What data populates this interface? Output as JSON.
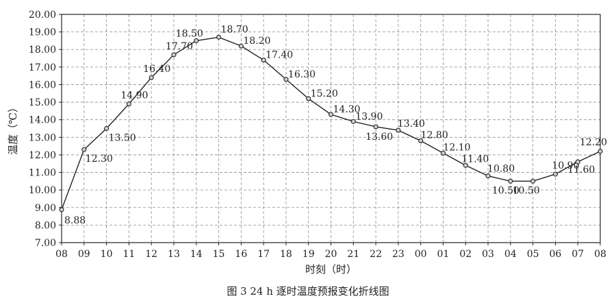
{
  "figure_caption": "图 3    24 h 逐时温度预报变化折线图",
  "chart_data": {
    "type": "line",
    "title": "",
    "xlabel": "时刻（时）",
    "ylabel": "温度（℃）",
    "ylim": [
      7.0,
      20.0
    ],
    "y_ticks": [
      "7.00",
      "8.00",
      "9.00",
      "10.00",
      "11.00",
      "12.00",
      "13.00",
      "14.00",
      "15.00",
      "16.00",
      "17.00",
      "18.00",
      "19.00",
      "20.00"
    ],
    "categories": [
      "08",
      "09",
      "10",
      "11",
      "12",
      "13",
      "14",
      "15",
      "16",
      "17",
      "18",
      "19",
      "20",
      "21",
      "22",
      "23",
      "00",
      "01",
      "02",
      "03",
      "04",
      "05",
      "06",
      "07",
      "08"
    ],
    "series": [
      {
        "values": [
          8.88,
          12.3,
          13.5,
          14.9,
          16.4,
          17.7,
          18.5,
          18.7,
          18.2,
          17.4,
          16.3,
          15.2,
          14.3,
          13.9,
          13.6,
          13.4,
          12.8,
          12.1,
          11.4,
          10.8,
          10.5,
          10.5,
          10.9,
          11.6,
          12.2
        ],
        "labels": [
          "8.88",
          "12.30",
          "13.50",
          "14.90",
          "16.40",
          "17.70",
          "18.50",
          "18.70",
          "18.20",
          "17.40",
          "16.30",
          "15.20",
          "14.30",
          "13.90",
          "13.60",
          "13.40",
          "12.80",
          "12.10",
          "11.40",
          "10.80",
          "10.50",
          "10.50",
          "10.90",
          "11.60",
          "12.20"
        ]
      }
    ],
    "grid": true,
    "line_color": "#222222",
    "marker_fill": "#cfcfcf"
  }
}
